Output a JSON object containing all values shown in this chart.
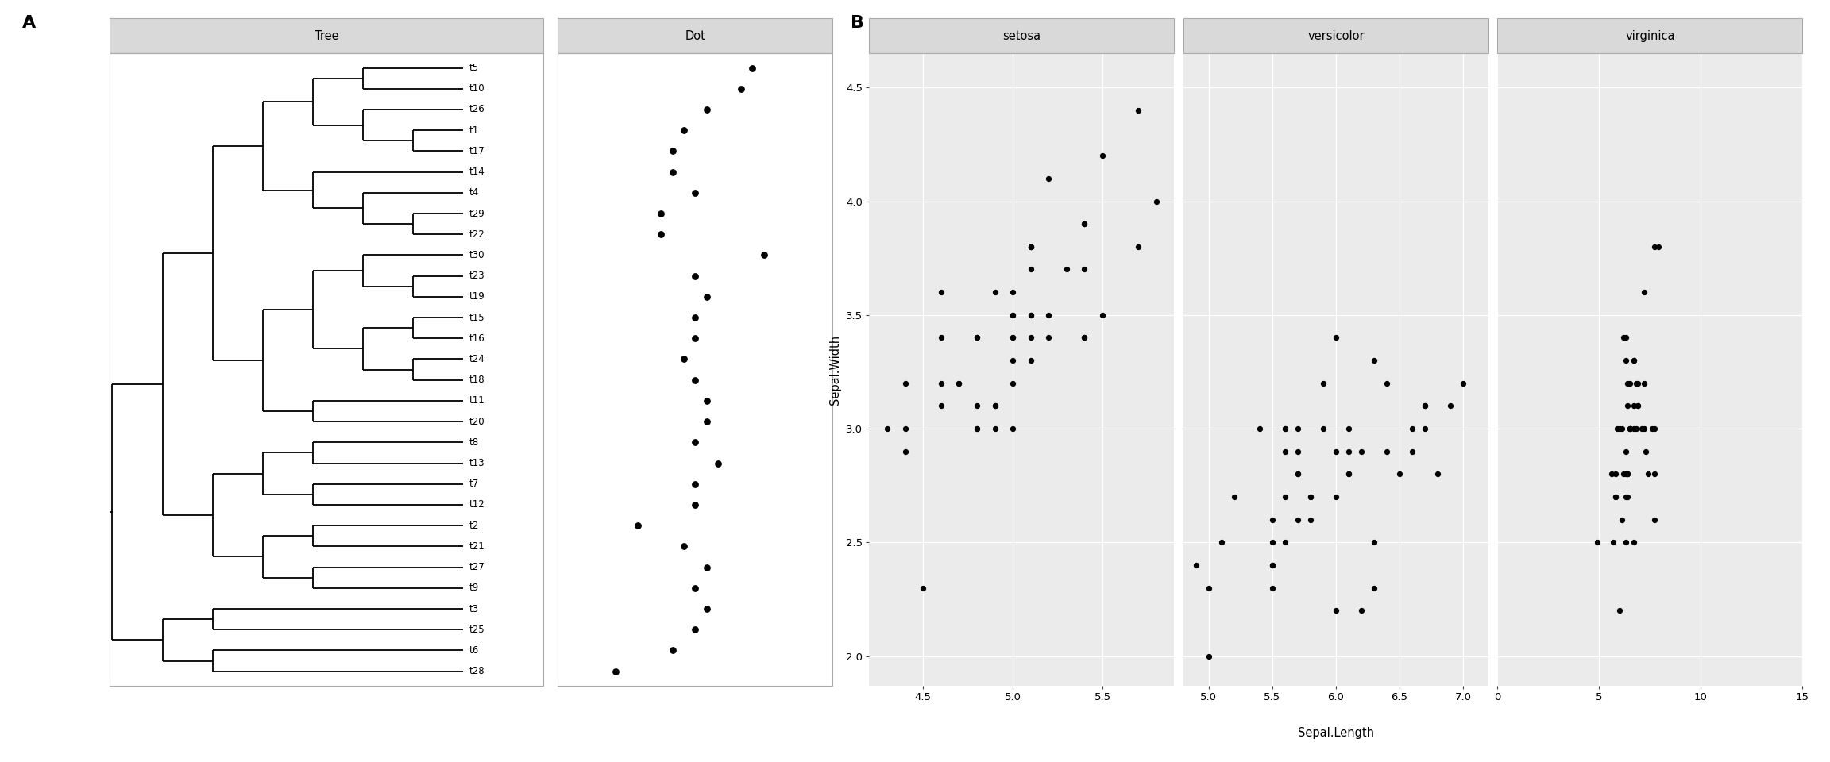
{
  "fig_width": 23.04,
  "fig_height": 9.6,
  "bg_color": "#ffffff",
  "panel_bg": "#ebebeb",
  "strip_bg": "#d9d9d9",
  "tree_tips": [
    "t5",
    "t10",
    "t26",
    "t1",
    "t17",
    "t14",
    "t4",
    "t29",
    "t22",
    "t30",
    "t23",
    "t19",
    "t15",
    "t16",
    "t24",
    "t18",
    "t11",
    "t20",
    "t8",
    "t13",
    "t7",
    "t12",
    "t2",
    "t21",
    "t27",
    "t9",
    "t3",
    "t25",
    "t6",
    "t28"
  ],
  "dot_x": [
    5.5,
    5.4,
    5.1,
    4.9,
    4.8,
    4.8,
    5.0,
    4.7,
    4.7,
    5.6,
    5.0,
    5.1,
    5.0,
    5.0,
    4.9,
    5.0,
    5.1,
    5.1,
    5.0,
    5.2,
    5.0,
    5.0,
    4.5,
    4.9,
    5.1,
    5.0,
    5.1,
    5.0,
    4.8,
    4.3
  ],
  "iris_setosa_length": [
    5.1,
    4.9,
    4.7,
    4.6,
    5.0,
    5.4,
    4.6,
    5.0,
    4.4,
    4.9,
    5.4,
    4.8,
    4.8,
    4.3,
    5.8,
    5.7,
    5.4,
    5.1,
    5.7,
    5.1,
    5.4,
    5.1,
    4.6,
    5.1,
    4.8,
    5.0,
    5.0,
    5.2,
    5.2,
    4.7,
    4.8,
    5.4,
    5.2,
    5.5,
    4.9,
    5.0,
    5.5,
    4.9,
    4.4,
    5.1,
    5.0,
    4.5,
    4.4,
    5.0,
    5.1,
    4.8,
    5.1,
    4.6,
    5.3,
    5.0
  ],
  "iris_setosa_width": [
    3.5,
    3.0,
    3.2,
    3.1,
    3.6,
    3.9,
    3.4,
    3.4,
    2.9,
    3.1,
    3.7,
    3.4,
    3.0,
    3.0,
    4.0,
    4.4,
    3.9,
    3.5,
    3.8,
    3.8,
    3.4,
    3.7,
    3.6,
    3.3,
    3.4,
    3.0,
    3.4,
    3.5,
    3.4,
    3.2,
    3.1,
    3.4,
    4.1,
    4.2,
    3.1,
    3.2,
    3.5,
    3.6,
    3.0,
    3.4,
    3.5,
    2.3,
    3.2,
    3.5,
    3.8,
    3.0,
    3.8,
    3.2,
    3.7,
    3.3
  ],
  "iris_versicolor_length": [
    7.0,
    6.4,
    6.9,
    5.5,
    6.5,
    5.7,
    6.3,
    4.9,
    6.6,
    5.2,
    5.0,
    5.9,
    6.0,
    6.1,
    5.6,
    6.7,
    5.6,
    5.8,
    6.2,
    5.6,
    5.9,
    6.1,
    6.3,
    6.1,
    6.4,
    6.6,
    6.8,
    6.7,
    6.0,
    5.7,
    5.5,
    5.5,
    5.8,
    6.0,
    5.4,
    6.0,
    6.7,
    6.3,
    5.6,
    5.5,
    5.5,
    6.1,
    5.8,
    5.0,
    5.6,
    5.7,
    5.7,
    6.2,
    5.1,
    5.7
  ],
  "iris_versicolor_width": [
    3.2,
    3.2,
    3.1,
    2.3,
    2.8,
    2.8,
    3.3,
    2.4,
    2.9,
    2.7,
    2.0,
    3.0,
    2.2,
    2.9,
    2.9,
    3.1,
    3.0,
    2.7,
    2.2,
    2.5,
    3.2,
    2.8,
    2.5,
    2.8,
    2.9,
    3.0,
    2.8,
    3.0,
    2.9,
    2.6,
    2.4,
    2.4,
    2.7,
    2.7,
    3.0,
    3.4,
    3.1,
    2.3,
    3.0,
    2.5,
    2.6,
    3.0,
    2.6,
    2.3,
    2.7,
    3.0,
    2.9,
    2.9,
    2.5,
    2.8
  ],
  "iris_virginica_length": [
    6.3,
    5.8,
    7.1,
    6.3,
    6.5,
    7.6,
    4.9,
    7.3,
    6.7,
    7.2,
    6.5,
    6.4,
    6.8,
    5.7,
    5.8,
    6.4,
    6.5,
    7.7,
    7.7,
    6.0,
    6.9,
    5.6,
    7.7,
    6.3,
    6.7,
    7.2,
    6.2,
    6.1,
    6.4,
    7.2,
    7.4,
    7.9,
    6.4,
    6.3,
    6.1,
    7.7,
    6.3,
    6.4,
    6.0,
    6.9,
    6.7,
    6.9,
    5.8,
    6.8,
    6.7,
    6.7,
    6.3,
    6.5,
    6.2,
    5.9
  ],
  "iris_virginica_width": [
    3.3,
    2.7,
    3.0,
    2.9,
    3.0,
    3.0,
    2.5,
    2.9,
    2.5,
    3.6,
    3.2,
    2.7,
    3.0,
    2.5,
    2.8,
    3.2,
    3.0,
    3.8,
    2.6,
    2.2,
    3.2,
    2.8,
    2.8,
    2.7,
    3.3,
    3.2,
    2.8,
    3.0,
    2.8,
    3.0,
    2.8,
    3.8,
    2.8,
    2.8,
    2.6,
    3.0,
    3.4,
    3.1,
    3.0,
    3.1,
    3.1,
    3.1,
    2.7,
    3.2,
    3.3,
    3.0,
    2.5,
    3.0,
    3.4,
    3.0
  ],
  "setosa_xlim": [
    4.2,
    5.9
  ],
  "versicolor_xlim": [
    4.8,
    7.2
  ],
  "virginica_xlim": [
    0,
    15
  ],
  "scatter_ylim": [
    1.87,
    4.65
  ],
  "yticks": [
    2.0,
    2.5,
    3.0,
    3.5,
    4.0,
    4.5
  ],
  "setosa_xticks": [
    4.5,
    5.0,
    5.5
  ],
  "versicolor_xticks": [
    5.0,
    5.5,
    6.0,
    6.5,
    7.0
  ],
  "virginica_xticks": [
    0,
    5,
    10,
    15
  ],
  "xlabel": "Sepal.Length",
  "ylabel": "Sepal.Width",
  "grid_color": "#ffffff",
  "dot_color": "#000000",
  "scatter_color": "#000000",
  "scatter_size": 18,
  "dot_size": 28,
  "lw": 1.3
}
